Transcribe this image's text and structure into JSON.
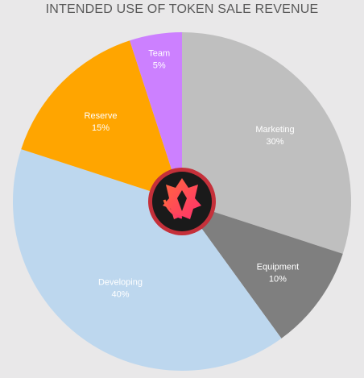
{
  "chart_data": {
    "type": "pie",
    "title": "INTENDED USE OF TOKEN SALE REVENUE",
    "start_angle_deg": 0,
    "direction": "clockwise",
    "slices": [
      {
        "name": "Marketing",
        "value": 30,
        "label": "30%",
        "color": "#bfbfbf"
      },
      {
        "name": "Equipment",
        "value": 10,
        "label": "10%",
        "color": "#7f7f7f"
      },
      {
        "name": "Developing",
        "value": 40,
        "label": "40%",
        "color": "#bdd7ee"
      },
      {
        "name": "Reserve",
        "value": 15,
        "label": "15%",
        "color": "#ffa500"
      },
      {
        "name": "Team",
        "value": 5,
        "label": "5%",
        "color": "#cc80ff"
      }
    ]
  },
  "center_logo": {
    "icon": "fox-flame-logo",
    "ring_color": "#c5303a",
    "background_color": "#1a1a1a"
  }
}
